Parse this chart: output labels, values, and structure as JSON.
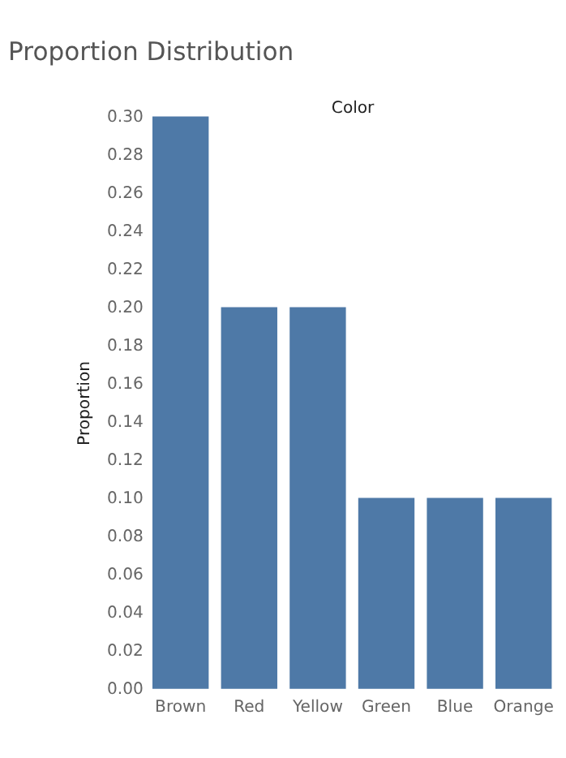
{
  "chart_data": {
    "type": "bar",
    "title": "Proportion Distribution",
    "xlabel": "Color",
    "ylabel": "Proportion",
    "categories": [
      "Brown",
      "Red",
      "Yellow",
      "Green",
      "Blue",
      "Orange"
    ],
    "values": [
      0.3,
      0.2,
      0.2,
      0.1,
      0.1,
      0.1
    ],
    "color": "#4e79a7",
    "ylim": [
      0,
      0.3
    ],
    "yticks": [
      {
        "value": 0,
        "label": "0.00"
      },
      0.02,
      0.04,
      0.06,
      0.08,
      {
        "value": 0.1,
        "label": "0.10"
      },
      0.12,
      0.14,
      0.16,
      0.18,
      {
        "value": 0.2,
        "label": "0.20"
      },
      0.22,
      0.24,
      0.26,
      0.28,
      {
        "value": 0.3,
        "label": "0.30"
      }
    ],
    "grid": false
  }
}
